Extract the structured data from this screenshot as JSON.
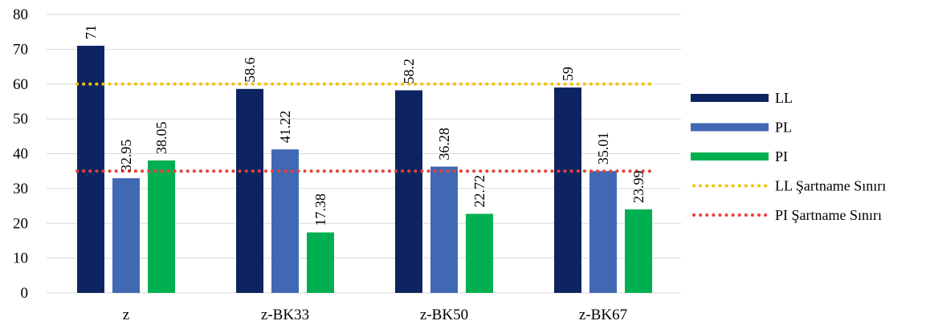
{
  "chart_data": {
    "type": "bar",
    "categories": [
      "z",
      "z-BK33",
      "z-BK50",
      "z-BK67"
    ],
    "series": [
      {
        "name": "LL",
        "values": [
          71,
          58.6,
          58.2,
          59
        ],
        "color": "#0d2461"
      },
      {
        "name": "PL",
        "values": [
          32.95,
          41.22,
          36.28,
          35.01
        ],
        "color": "#4168b3"
      },
      {
        "name": "PI",
        "values": [
          38.05,
          17.38,
          22.72,
          23.99
        ],
        "color": "#00b050"
      }
    ],
    "reference_lines": [
      {
        "name": "LL Şartname Sınırı",
        "value": 60,
        "color": "#f2c200",
        "style": "dotted"
      },
      {
        "name": "PI Şartname Sınırı",
        "value": 35,
        "color": "#e8403a",
        "style": "dotted"
      }
    ],
    "data_labels": [
      [
        "71",
        "58.6",
        "58.2",
        "59"
      ],
      [
        "32.95",
        "41.22",
        "36.28",
        "35.01"
      ],
      [
        "38.05",
        "17.38",
        "22.72",
        "23.99"
      ]
    ],
    "y_ticks": [
      0,
      10,
      20,
      30,
      40,
      50,
      60,
      70,
      80
    ],
    "ylim": [
      0,
      80
    ],
    "grid": true,
    "legend_position": "right",
    "title": "",
    "xlabel": "",
    "ylabel": ""
  }
}
